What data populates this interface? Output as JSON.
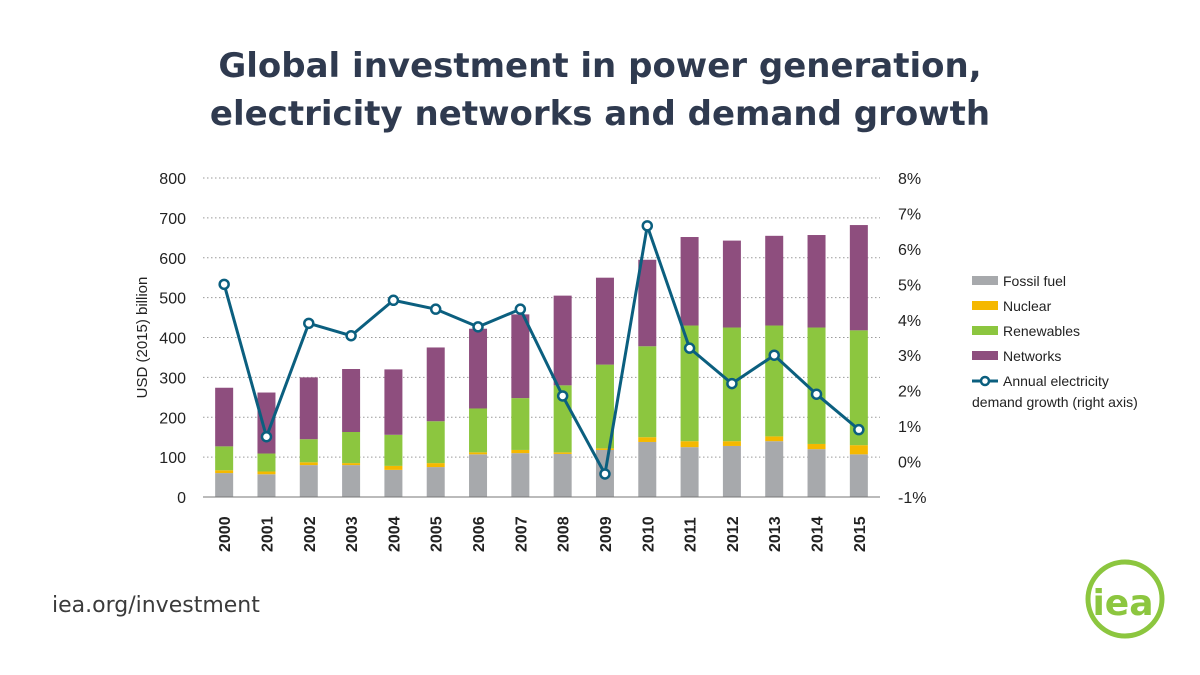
{
  "title": {
    "line1": "Global investment in power generation,",
    "line2": "electricity networks and demand growth"
  },
  "footer": {
    "url": "iea.org/investment",
    "logo_text": "iea"
  },
  "colors": {
    "fossil": "#a7a9ac",
    "nuclear": "#f5b800",
    "renewables": "#8cc63f",
    "networks": "#8e4e7e",
    "demand_line": "#0b5f7f",
    "title": "#2f3a4f",
    "logo": "#8cc63f"
  },
  "chart_data": {
    "type": "bar",
    "stacked": true,
    "categories": [
      "2000",
      "2001",
      "2002",
      "2003",
      "2004",
      "2005",
      "2006",
      "2007",
      "2008",
      "2009",
      "2010",
      "2011",
      "2012",
      "2013",
      "2014",
      "2015"
    ],
    "series": [
      {
        "name": "Fossil fuel",
        "values": [
          60,
          57,
          80,
          80,
          68,
          75,
          107,
          110,
          108,
          118,
          138,
          125,
          128,
          140,
          120,
          107
        ]
      },
      {
        "name": "Nuclear",
        "values": [
          7,
          7,
          7,
          5,
          10,
          10,
          5,
          8,
          4,
          4,
          12,
          15,
          12,
          12,
          13,
          23
        ]
      },
      {
        "name": "Renewables",
        "values": [
          60,
          45,
          58,
          78,
          78,
          105,
          110,
          130,
          168,
          210,
          228,
          290,
          285,
          278,
          292,
          288
        ]
      },
      {
        "name": "Networks",
        "values": [
          147,
          153,
          155,
          158,
          164,
          185,
          200,
          210,
          225,
          218,
          217,
          222,
          218,
          225,
          232,
          264
        ]
      }
    ],
    "line_series": {
      "name": "Annual electricity demand growth (right axis)",
      "axis": "right",
      "values": [
        5.0,
        0.7,
        3.9,
        3.55,
        4.55,
        4.3,
        3.8,
        4.3,
        1.85,
        -0.35,
        6.65,
        3.2,
        2.2,
        3.0,
        1.9,
        0.9
      ]
    },
    "legend": {
      "placement": "right",
      "items": [
        "Fossil fuel",
        "Nuclear",
        "Renewables",
        "Networks"
      ],
      "line_label_1": "Annual electricity",
      "line_label_2": "demand growth (right axis)"
    },
    "ylabel": "USD (2015) billion",
    "ylim": [
      0,
      800
    ],
    "yticks": [
      "0",
      "100",
      "200",
      "300",
      "400",
      "500",
      "600",
      "700",
      "800"
    ],
    "y2lim": [
      -1,
      8
    ],
    "y2ticks": [
      "-1%",
      "0%",
      "1%",
      "2%",
      "3%",
      "4%",
      "5%",
      "6%",
      "7%",
      "8%"
    ],
    "grid": true
  }
}
